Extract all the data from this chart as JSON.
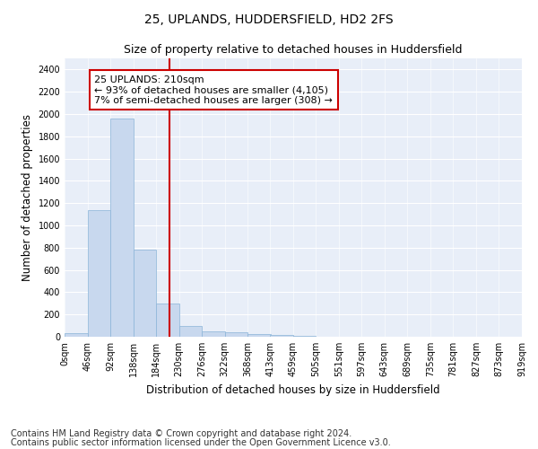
{
  "title": "25, UPLANDS, HUDDERSFIELD, HD2 2FS",
  "subtitle": "Size of property relative to detached houses in Huddersfield",
  "xlabel": "Distribution of detached houses by size in Huddersfield",
  "ylabel": "Number of detached properties",
  "bar_values": [
    35,
    1135,
    1960,
    780,
    300,
    100,
    45,
    40,
    25,
    18,
    5,
    3,
    2,
    1,
    1,
    0,
    0,
    0,
    0,
    0
  ],
  "bin_edges": [
    0,
    46,
    92,
    138,
    184,
    230,
    276,
    322,
    368,
    413,
    459,
    505,
    551,
    597,
    643,
    689,
    735,
    781,
    827,
    873,
    919
  ],
  "tick_labels": [
    "0sqm",
    "46sqm",
    "92sqm",
    "138sqm",
    "184sqm",
    "230sqm",
    "276sqm",
    "322sqm",
    "368sqm",
    "413sqm",
    "459sqm",
    "505sqm",
    "551sqm",
    "597sqm",
    "643sqm",
    "689sqm",
    "735sqm",
    "781sqm",
    "827sqm",
    "873sqm",
    "919sqm"
  ],
  "bar_color": "#c8d8ee",
  "bar_edge_color": "#8ab4d8",
  "vline_x": 210,
  "vline_color": "#cc0000",
  "annotation_line1": "25 UPLANDS: 210sqm",
  "annotation_line2": "← 93% of detached houses are smaller (4,105)",
  "annotation_line3": "7% of semi-detached houses are larger (308) →",
  "annotation_box_color": "#cc0000",
  "ylim": [
    0,
    2500
  ],
  "yticks": [
    0,
    200,
    400,
    600,
    800,
    1000,
    1200,
    1400,
    1600,
    1800,
    2000,
    2200,
    2400
  ],
  "footer_line1": "Contains HM Land Registry data © Crown copyright and database right 2024.",
  "footer_line2": "Contains public sector information licensed under the Open Government Licence v3.0.",
  "background_color": "#e8eef8",
  "grid_color": "#ffffff",
  "title_fontsize": 10,
  "subtitle_fontsize": 9,
  "axis_label_fontsize": 8.5,
  "tick_fontsize": 7,
  "annotation_fontsize": 8,
  "footer_fontsize": 7
}
